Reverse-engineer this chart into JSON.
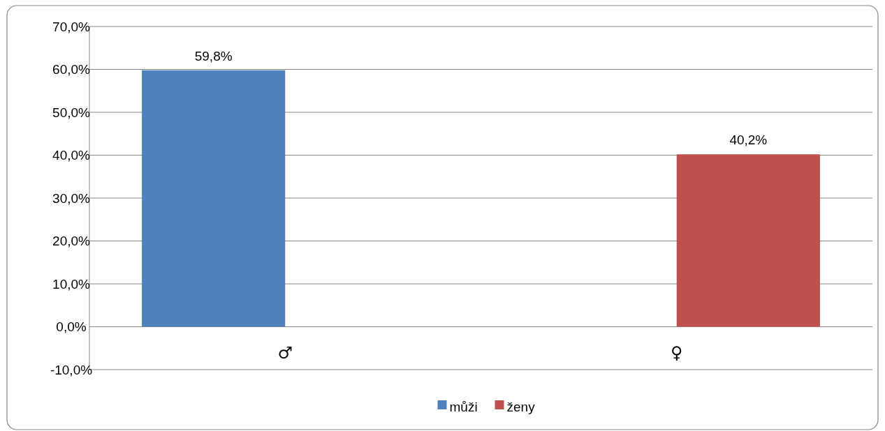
{
  "chart_data": {
    "type": "bar",
    "categories": [
      "♂",
      "♀"
    ],
    "series": [
      {
        "name": "můži",
        "color": "#4f81bd",
        "values": [
          59.8,
          null
        ],
        "value_labels": [
          "59,8%",
          null
        ]
      },
      {
        "name": "ženy",
        "color": "#c0504d",
        "values": [
          null,
          40.2
        ],
        "value_labels": [
          null,
          "40,2%"
        ]
      }
    ],
    "ylim": [
      -10,
      70
    ],
    "yticks": [
      {
        "value": -10,
        "label": "-10,0%"
      },
      {
        "value": 0,
        "label": "0,0%"
      },
      {
        "value": 10,
        "label": "10,0%"
      },
      {
        "value": 20,
        "label": "20,0%"
      },
      {
        "value": 30,
        "label": "30,0%"
      },
      {
        "value": 40,
        "label": "40,0%"
      },
      {
        "value": 50,
        "label": "50,0%"
      },
      {
        "value": 60,
        "label": "60,0%"
      },
      {
        "value": 70,
        "label": "70,0%"
      }
    ],
    "grid": "y",
    "legend": "bottom"
  }
}
